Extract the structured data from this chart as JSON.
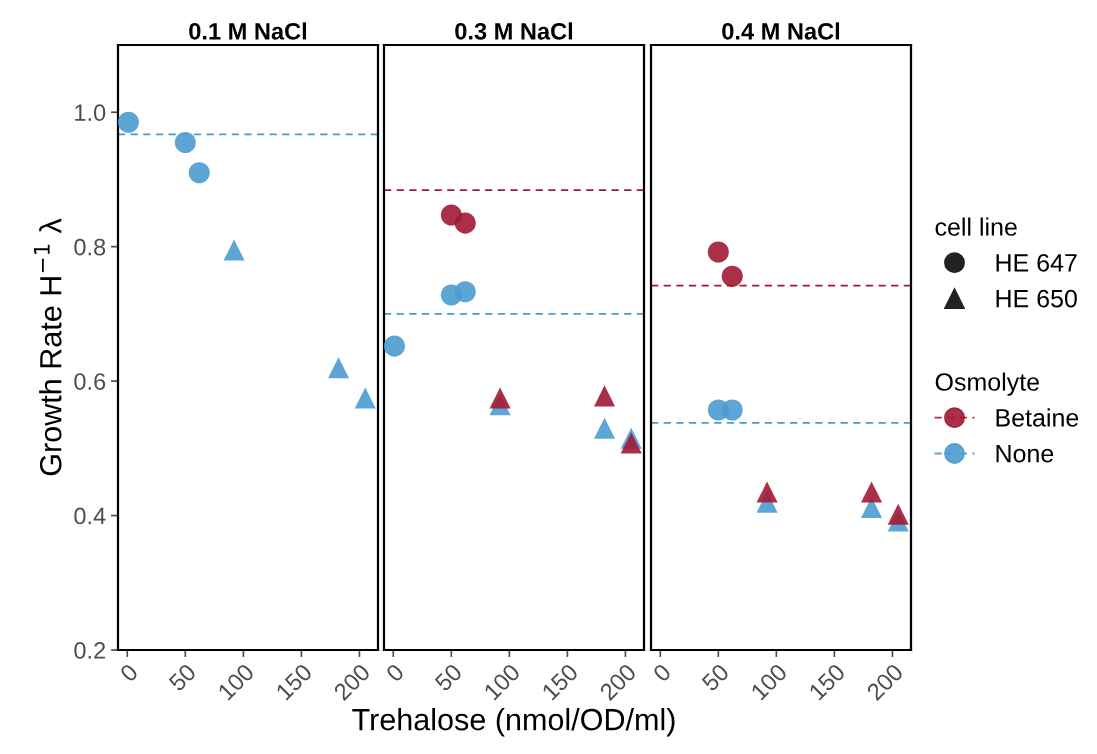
{
  "chart_data": [
    {
      "type": "scatter",
      "title": "0.1 M NaCl",
      "ylabel": "Growth Rate H$^{−1}$ λ",
      "xlim": [
        -8,
        216
      ],
      "xticks": [
        0,
        50,
        100,
        150,
        200
      ],
      "ylim": [
        0.2,
        1.1
      ],
      "yticks": [
        {
          "value": 0.2,
          "label": "0.2"
        },
        {
          "value": 0.4,
          "label": "0.4"
        },
        {
          "value": 0.6,
          "label": "0.6"
        },
        {
          "value": 0.8,
          "label": "0.8"
        },
        {
          "value": 1.0,
          "label": "1.0"
        }
      ],
      "grid": false,
      "series": [
        {
          "marker": "circle",
          "x": [
            1,
            50,
            62
          ],
          "values": [
            0.985,
            0.955,
            0.91
          ],
          "colors": [
            "#4a9bd0",
            "#4a9bd0",
            "#4a9bd0"
          ]
        },
        {
          "marker": "triangle",
          "x": [
            92,
            182,
            205
          ],
          "values": [
            0.795,
            0.62,
            0.575
          ],
          "colors": [
            "#4a9bd0",
            "#4a9bd0",
            "#4a9bd0"
          ]
        }
      ],
      "ref_lines": [
        {
          "axis": "y",
          "value": 0.967,
          "color": "#4a9bd0",
          "line_style": "dashed"
        }
      ]
    },
    {
      "type": "scatter",
      "title": "0.3 M NaCl",
      "xlabel": "Trehalose (nmol/OD/ml)",
      "xlim": [
        -8,
        216
      ],
      "xticks": [
        0,
        50,
        100,
        150,
        200
      ],
      "ylim": [
        0.2,
        1.1
      ],
      "yticks": [
        {
          "value": 0.2,
          "label": null
        },
        {
          "value": 0.4,
          "label": null
        },
        {
          "value": 0.6,
          "label": null
        },
        {
          "value": 0.8,
          "label": null
        },
        {
          "value": 1.0,
          "label": null
        }
      ],
      "tick_labels": "x",
      "grid": false,
      "series": [
        {
          "marker": "circle",
          "x": [
            1,
            50,
            62,
            50,
            62
          ],
          "values": [
            0.652,
            0.728,
            0.733,
            0.847,
            0.835
          ],
          "colors": [
            "#4a9bd0",
            "#4a9bd0",
            "#4a9bd0",
            "#a11a33",
            "#a11a33"
          ]
        },
        {
          "marker": "triangle",
          "x": [
            92,
            182,
            205,
            92,
            182,
            205
          ],
          "values": [
            0.565,
            0.53,
            0.515,
            0.575,
            0.578,
            0.508
          ],
          "colors": [
            "#4a9bd0",
            "#4a9bd0",
            "#4a9bd0",
            "#a11a33",
            "#a11a33",
            "#a11a33"
          ]
        }
      ],
      "ref_lines": [
        {
          "axis": "y",
          "value": 0.884,
          "color": "#a11a33",
          "line_style": "dashed"
        },
        {
          "axis": "y",
          "value": 0.7,
          "color": "#4a9bd0",
          "line_style": "dashed"
        }
      ]
    },
    {
      "type": "scatter",
      "title": "0.4 M NaCl",
      "xlim": [
        -8,
        216
      ],
      "xticks": [
        0,
        50,
        100,
        150,
        200
      ],
      "ylim": [
        0.2,
        1.1
      ],
      "yticks": [
        {
          "value": 0.2,
          "label": null
        },
        {
          "value": 0.4,
          "label": null
        },
        {
          "value": 0.6,
          "label": null
        },
        {
          "value": 0.8,
          "label": null
        },
        {
          "value": 1.0,
          "label": null
        }
      ],
      "tick_labels": "x",
      "grid": false,
      "legend": "right",
      "legend_title": [
        "cell line",
        "Osmolyte"
      ],
      "series": [
        {
          "name": "HE 647",
          "marker": "circle",
          "x": [
            50,
            62,
            50,
            62
          ],
          "values": [
            0.557,
            0.557,
            0.792,
            0.756
          ],
          "colors": [
            "#4a9bd0",
            "#4a9bd0",
            "#a11a33",
            "#a11a33"
          ]
        },
        {
          "name": "HE 650",
          "marker": "triangle",
          "x": [
            92,
            182,
            205,
            92,
            182,
            205
          ],
          "values": [
            0.42,
            0.412,
            0.392,
            0.435,
            0.435,
            0.402
          ],
          "colors": [
            "#4a9bd0",
            "#4a9bd0",
            "#4a9bd0",
            "#a11a33",
            "#a11a33",
            "#a11a33"
          ]
        }
      ],
      "ref_lines": [
        {
          "axis": "y",
          "value": 0.742,
          "color": "#a11a33",
          "line_style": "dashed",
          "label": "Betaine"
        },
        {
          "axis": "y",
          "value": 0.538,
          "color": "#4a9bd0",
          "line_style": "dashed",
          "label": "None"
        }
      ]
    }
  ]
}
